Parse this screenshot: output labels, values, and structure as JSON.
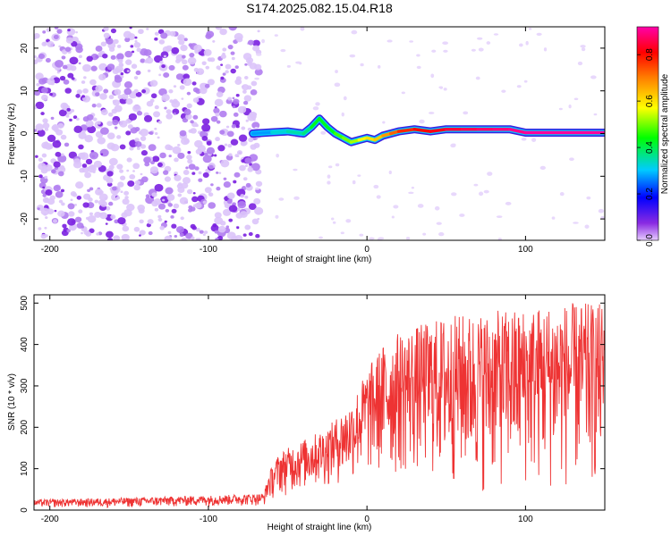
{
  "figure": {
    "title": "S174.2025.082.15.04.R18"
  },
  "chart_data": [
    {
      "type": "heatmap",
      "title": "S174.2025.082.15.04.R18",
      "xlabel": "Height of straight line (km)",
      "ylabel": "Frequency (Hz)",
      "xlim": [
        -210,
        150
      ],
      "ylim": [
        -25,
        25
      ],
      "x_ticks": [
        -200,
        -100,
        0,
        100
      ],
      "y_ticks": [
        -20,
        -10,
        0,
        10,
        20
      ],
      "colorbar": {
        "label": "Normalized spectral amplitude",
        "range": [
          0.0,
          0.92
        ],
        "ticks": [
          0.0,
          0.2,
          0.4,
          0.6,
          0.8
        ],
        "colormap": "rainbow (purple-blue-cyan-green-yellow-red-magenta)"
      },
      "noise_region_x": [
        -210,
        -72
      ],
      "ridge": {
        "x": [
          -72,
          -60,
          -50,
          -40,
          -35,
          -30,
          -25,
          -20,
          -15,
          -10,
          -5,
          0,
          5,
          10,
          15,
          20,
          30,
          40,
          50,
          60,
          70,
          80,
          90,
          100,
          150
        ],
        "freq": [
          0,
          0.3,
          0.5,
          0,
          1.5,
          3.5,
          1.5,
          0,
          -1,
          -2,
          -1.5,
          -1,
          -1.5,
          -0.5,
          0,
          0.5,
          1,
          0.5,
          1,
          1,
          1,
          1,
          1,
          0.2,
          0.2
        ],
        "amplitude": [
          0.25,
          0.3,
          0.35,
          0.35,
          0.4,
          0.45,
          0.4,
          0.45,
          0.5,
          0.5,
          0.55,
          0.6,
          0.6,
          0.65,
          0.7,
          0.75,
          0.8,
          0.8,
          0.85,
          0.85,
          0.88,
          0.88,
          0.9,
          0.9,
          0.92
        ]
      }
    },
    {
      "type": "line",
      "xlabel": "Height of straight line (km)",
      "ylabel": "SNR (10 * v/v)",
      "xlim": [
        -210,
        150
      ],
      "ylim": [
        0,
        520
      ],
      "x_ticks": [
        -200,
        -100,
        0,
        100
      ],
      "y_ticks": [
        0,
        100,
        200,
        300,
        400,
        500
      ],
      "series": [
        {
          "color": "#ee3333",
          "envelope_x": [
            -210,
            -150,
            -100,
            -65,
            -62,
            -55,
            -40,
            -25,
            -10,
            0,
            10,
            20,
            35,
            50,
            80,
            100,
            120,
            150
          ],
          "envelope_upper": [
            25,
            30,
            35,
            40,
            90,
            140,
            170,
            200,
            260,
            340,
            400,
            430,
            450,
            470,
            480,
            490,
            500,
            500
          ],
          "envelope_lower": [
            5,
            5,
            8,
            10,
            20,
            30,
            40,
            50,
            60,
            60,
            60,
            60,
            60,
            40,
            30,
            30,
            30,
            30
          ]
        }
      ]
    }
  ]
}
